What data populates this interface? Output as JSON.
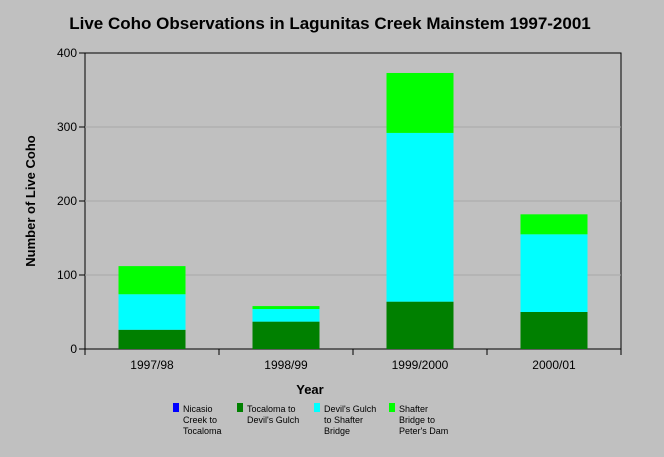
{
  "chart_data": {
    "type": "bar",
    "stacked": true,
    "title": "Live Coho Observations in Lagunitas Creek Mainstem 1997-2001",
    "xlabel": "Year",
    "ylabel": "Number of Live Coho",
    "ylim": [
      0,
      400
    ],
    "yticks": [
      "0",
      "100",
      "200",
      "300",
      "400"
    ],
    "categories": [
      "1997/98",
      "1998/99",
      "1999/2000",
      "2000/01"
    ],
    "grid": true,
    "legend_position": "bottom",
    "series": [
      {
        "name": "Nicasio Creek to Tocaloma",
        "legend_lines": [
          "Nicasio",
          "Creek to",
          "Tocaloma"
        ],
        "color": "#0000ff",
        "values": [
          0,
          0,
          0,
          0
        ]
      },
      {
        "name": "Tocaloma to Devil's Gulch",
        "legend_lines": [
          "Tocaloma to",
          "Devil's Gulch"
        ],
        "color": "#008000",
        "values": [
          26,
          37,
          64,
          50
        ]
      },
      {
        "name": "Devil's Gulch to Shafter Bridge",
        "legend_lines": [
          "Devil's Gulch",
          "to Shafter",
          "Bridge"
        ],
        "color": "#00ffff",
        "values": [
          48,
          17,
          228,
          105
        ]
      },
      {
        "name": "Shafter Bridge to Peter's Dam",
        "legend_lines": [
          "Shafter",
          "Bridge to",
          "Peter's Dam"
        ],
        "color": "#00ff00",
        "values": [
          38,
          4,
          81,
          27
        ]
      }
    ]
  }
}
